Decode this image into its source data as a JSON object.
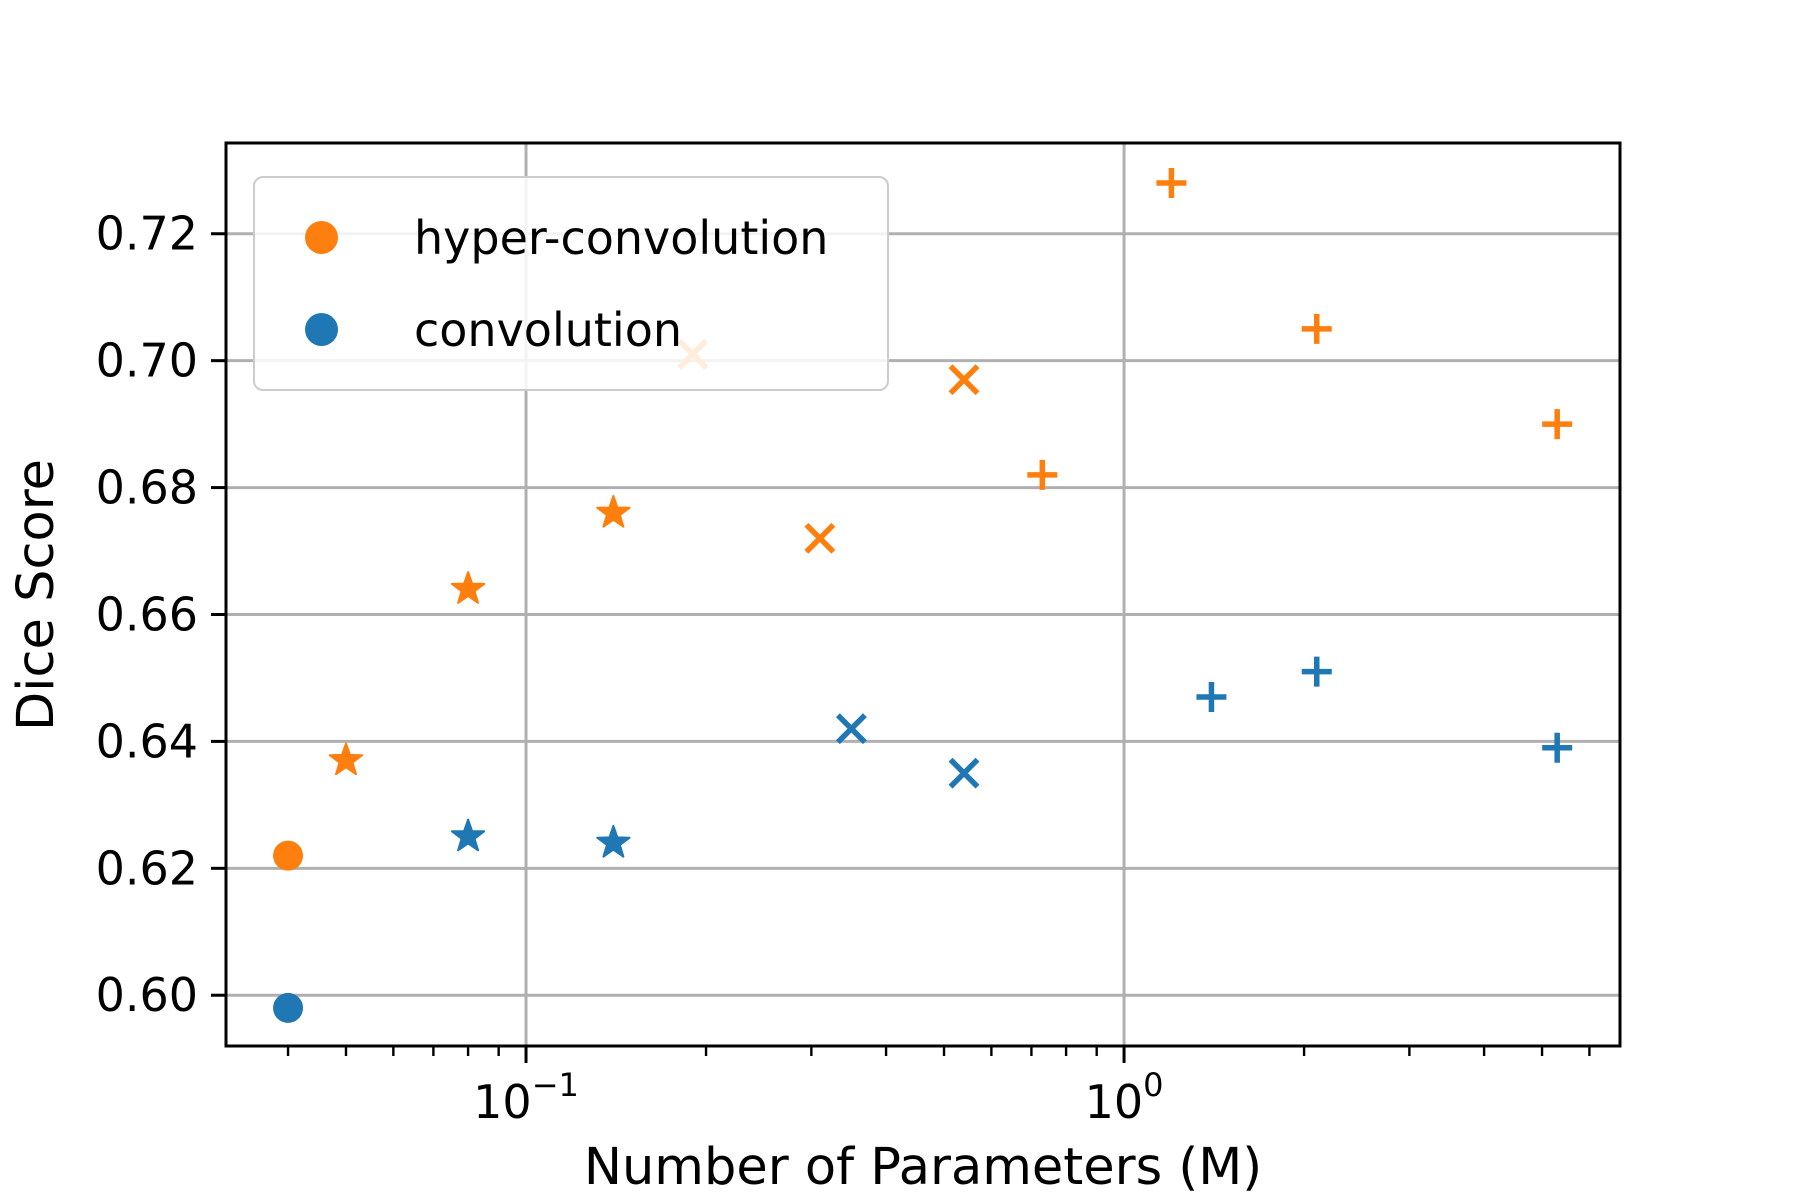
{
  "chart_data": {
    "type": "scatter",
    "title": "",
    "xlabel": "Number of Parameters (M)",
    "ylabel": "Dice Score",
    "xscale": "log",
    "xlim": [
      0.0315,
      6.75
    ],
    "ylim": [
      0.592,
      0.7343
    ],
    "grid": true,
    "grid_color": "#b0b0b0",
    "spine_color": "#000000",
    "x_major_ticks": [
      {
        "value": 0.1,
        "label_base": "10",
        "label_exp": "−1"
      },
      {
        "value": 1,
        "label_base": "10",
        "label_exp": "0"
      }
    ],
    "x_minor_ticks": [
      0.04,
      0.05,
      0.06,
      0.07,
      0.08,
      0.09,
      0.2,
      0.3,
      0.4,
      0.5,
      0.6,
      0.7,
      0.8,
      0.9,
      2,
      3,
      4,
      5,
      6
    ],
    "y_ticks": [
      {
        "value": 0.6,
        "label": "0.60"
      },
      {
        "value": 0.62,
        "label": "0.62"
      },
      {
        "value": 0.64,
        "label": "0.64"
      },
      {
        "value": 0.66,
        "label": "0.66"
      },
      {
        "value": 0.68,
        "label": "0.68"
      },
      {
        "value": 0.7,
        "label": "0.70"
      },
      {
        "value": 0.72,
        "label": "0.72"
      }
    ],
    "legend": {
      "position": "upper left",
      "entries": [
        {
          "label": "hyper-convolution",
          "color": "#ff7f0e",
          "marker": "circle"
        },
        {
          "label": "convolution",
          "color": "#1f77b4",
          "marker": "circle"
        }
      ]
    },
    "series": [
      {
        "name": "hyper-convolution",
        "color": "#ff7f0e",
        "points": [
          {
            "x": 0.04,
            "y": 0.622,
            "marker": "circle"
          },
          {
            "x": 0.05,
            "y": 0.637,
            "marker": "star"
          },
          {
            "x": 0.08,
            "y": 0.664,
            "marker": "star"
          },
          {
            "x": 0.14,
            "y": 0.676,
            "marker": "star"
          },
          {
            "x": 0.19,
            "y": 0.701,
            "marker": "x"
          },
          {
            "x": 0.31,
            "y": 0.672,
            "marker": "x"
          },
          {
            "x": 0.54,
            "y": 0.697,
            "marker": "x"
          },
          {
            "x": 0.73,
            "y": 0.682,
            "marker": "plus"
          },
          {
            "x": 1.2,
            "y": 0.728,
            "marker": "plus"
          },
          {
            "x": 2.1,
            "y": 0.705,
            "marker": "plus"
          },
          {
            "x": 5.3,
            "y": 0.69,
            "marker": "plus"
          }
        ]
      },
      {
        "name": "convolution",
        "color": "#1f77b4",
        "points": [
          {
            "x": 0.04,
            "y": 0.598,
            "marker": "circle"
          },
          {
            "x": 0.08,
            "y": 0.625,
            "marker": "star"
          },
          {
            "x": 0.14,
            "y": 0.624,
            "marker": "star"
          },
          {
            "x": 0.35,
            "y": 0.642,
            "marker": "x"
          },
          {
            "x": 0.54,
            "y": 0.635,
            "marker": "x"
          },
          {
            "x": 1.4,
            "y": 0.647,
            "marker": "plus"
          },
          {
            "x": 2.1,
            "y": 0.651,
            "marker": "plus"
          },
          {
            "x": 5.3,
            "y": 0.639,
            "marker": "plus"
          }
        ]
      }
    ]
  }
}
